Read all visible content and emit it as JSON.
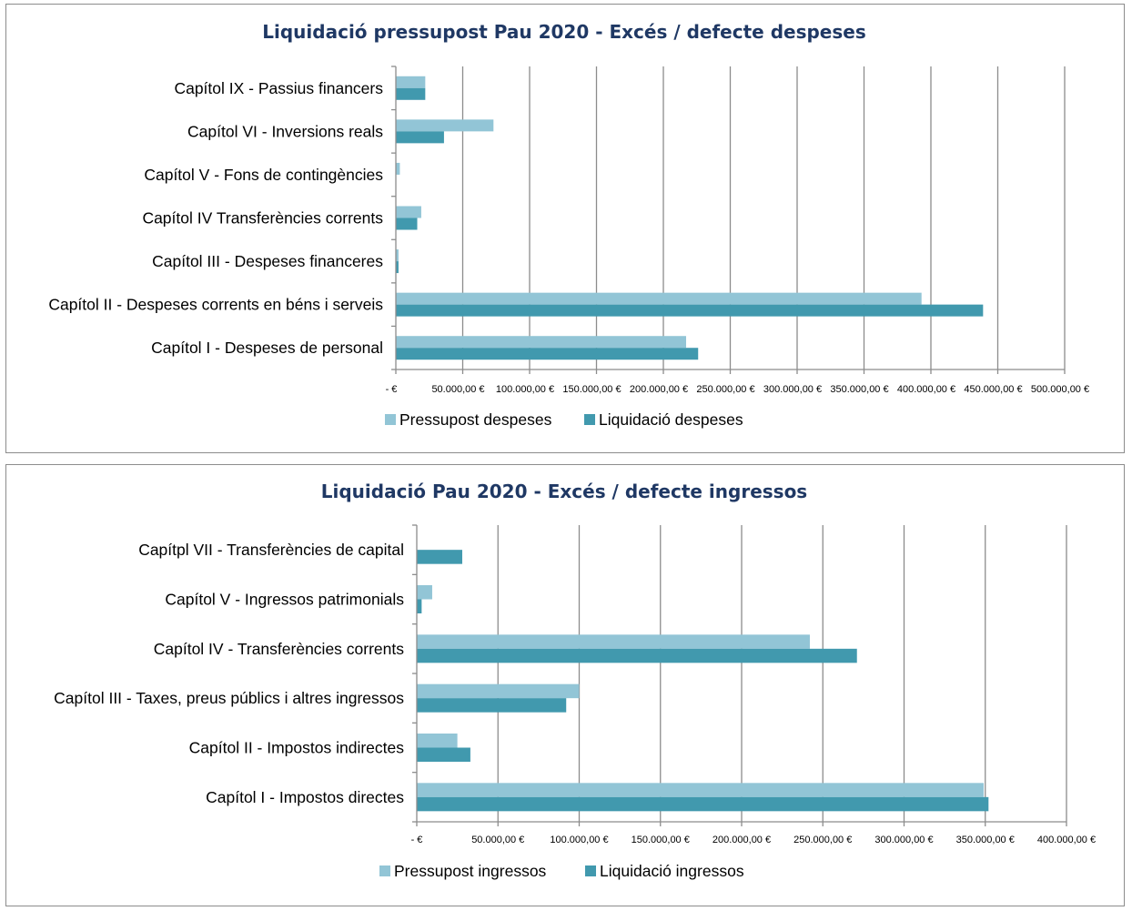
{
  "colors": {
    "budget": "#92c5d6",
    "actual": "#4199ae",
    "grid": "#8c8c8c",
    "title": "#1f3864"
  },
  "chart_data": [
    {
      "type": "bar",
      "orientation": "horizontal",
      "title": "Liquidació pressupost Pau 2020 - Excés / defecte despeses",
      "categories": [
        "Capítol IX - Passius financers",
        "Capítol VI - Inversions reals",
        "Capítol V - Fons de contingències",
        "Capítol IV Transferències corrents",
        "Capítol III -  Despeses financeres",
        "Capítol II -  Despeses corrents en béns i serveis",
        "Capítol I - Despeses de personal"
      ],
      "series": [
        {
          "name": "Pressupost despeses",
          "values": [
            22000,
            73000,
            3000,
            19000,
            2000,
            393000,
            217000
          ]
        },
        {
          "name": "Liquidació despeses",
          "values": [
            22000,
            36000,
            0,
            16000,
            2000,
            439000,
            226000
          ]
        }
      ],
      "xlim": [
        0,
        500000
      ],
      "tick_labels": [
        "-  €",
        "50.000,00 €",
        "100.000,00 €",
        "150.000,00 €",
        "200.000,00 €",
        "250.000,00 €",
        "300.000,00 €",
        "350.000,00 €",
        "400.000,00 €",
        "450.000,00 €",
        "500.000,00 €"
      ],
      "grid": true,
      "legend": "bottom"
    },
    {
      "type": "bar",
      "orientation": "horizontal",
      "title": "Liquidació Pau 2020 - Excés / defecte ingressos",
      "categories": [
        "Capítpl VII - Transferències de capital",
        "Capítol V - Ingressos patrimonials",
        "Capítol IV - Transferències corrents",
        "Capítol III - Taxes, preus públics i altres ingressos",
        "Capítol II - Impostos indirectes",
        "Capítol I - Impostos directes"
      ],
      "series": [
        {
          "name": "Pressupost ingressos",
          "values": [
            0,
            9500,
            242000,
            100000,
            25000,
            349000
          ]
        },
        {
          "name": "Liquidació ingressos",
          "values": [
            28000,
            3000,
            271000,
            92000,
            33000,
            352000
          ]
        }
      ],
      "xlim": [
        0,
        400000
      ],
      "tick_labels": [
        "-  €",
        "50.000,00 €",
        "100.000,00 €",
        "150.000,00 €",
        "200.000,00 €",
        "250.000,00 €",
        "300.000,00 €",
        "350.000,00 €",
        "400.000,00 €"
      ],
      "grid": true,
      "legend": "bottom"
    }
  ]
}
